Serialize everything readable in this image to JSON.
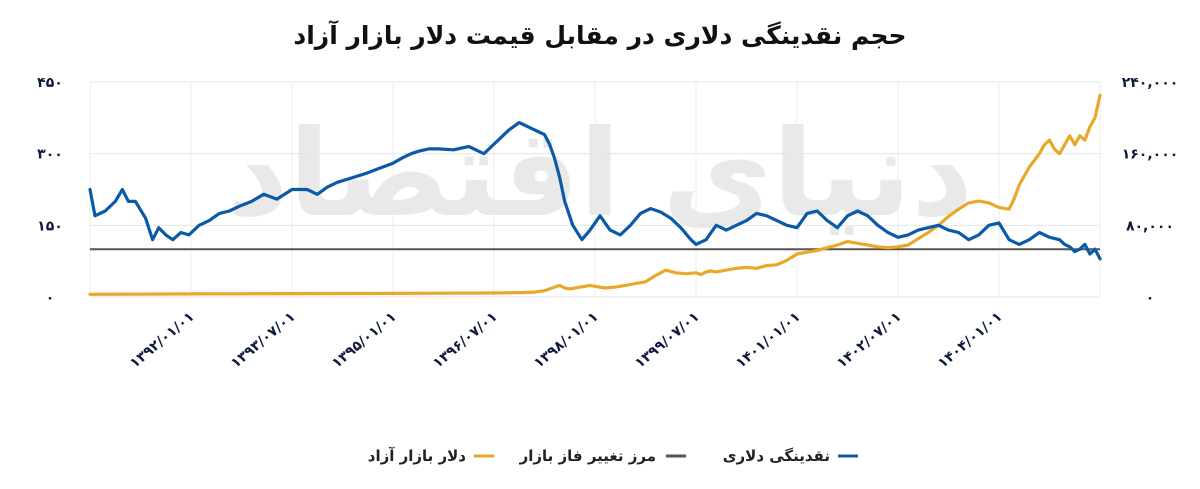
{
  "chart_data": {
    "type": "line",
    "title": "حجم نقدینگی دلاری در مقابل قیمت دلار بازار آزاد",
    "watermark": "دنیای اقتصاد",
    "x_tick_labels": [
      "۱۳۹۲/۰۱/۰۱",
      "۱۳۹۳/۰۷/۰۱",
      "۱۳۹۵/۰۱/۰۱",
      "۱۳۹۶/۰۷/۰۱",
      "۱۳۹۸/۰۱/۰۱",
      "۱۳۹۹/۰۷/۰۱",
      "۱۴۰۱/۰۱/۰۱",
      "۱۴۰۲/۰۷/۰۱",
      "۱۴۰۴/۰۱/۰۱"
    ],
    "x_tick_positions": [
      0.1,
      0.2,
      0.3,
      0.4,
      0.5,
      0.6,
      0.7,
      0.8,
      0.9
    ],
    "y_left": {
      "ylim": [
        0,
        450
      ],
      "ticks": [
        0,
        150,
        300,
        450
      ],
      "tick_labels": [
        "۰",
        "۱۵۰",
        "۳۰۰",
        "۴۵۰"
      ]
    },
    "y_right": {
      "ylim": [
        0,
        240000
      ],
      "ticks": [
        0,
        80000,
        160000,
        240000
      ],
      "tick_labels": [
        "۰",
        "۸۰,۰۰۰",
        "۱۶۰,۰۰۰",
        "۲۴۰,۰۰۰"
      ]
    },
    "x_range": [
      0,
      1
    ],
    "threshold": {
      "name": "مرز تغییر فاز بازار",
      "value": 100,
      "axis": "left",
      "color": "#555555"
    },
    "series": [
      {
        "name": "نقدینگی دلاری",
        "axis": "left",
        "color": "#0a5aa8",
        "x": [
          0.0,
          0.005,
          0.015,
          0.025,
          0.032,
          0.038,
          0.045,
          0.055,
          0.062,
          0.068,
          0.075,
          0.082,
          0.09,
          0.098,
          0.108,
          0.118,
          0.128,
          0.138,
          0.148,
          0.16,
          0.172,
          0.185,
          0.2,
          0.215,
          0.225,
          0.235,
          0.245,
          0.26,
          0.275,
          0.29,
          0.3,
          0.31,
          0.318,
          0.325,
          0.335,
          0.345,
          0.36,
          0.375,
          0.385,
          0.39,
          0.4,
          0.41,
          0.415,
          0.425,
          0.43,
          0.435,
          0.44,
          0.45,
          0.455,
          0.46,
          0.465,
          0.47,
          0.478,
          0.487,
          0.495,
          0.505,
          0.515,
          0.525,
          0.535,
          0.545,
          0.555,
          0.565,
          0.575,
          0.585,
          0.595,
          0.6,
          0.61,
          0.615,
          0.62,
          0.63,
          0.64,
          0.65,
          0.66,
          0.67,
          0.68,
          0.69,
          0.7,
          0.71,
          0.72,
          0.73,
          0.74,
          0.75,
          0.76,
          0.77,
          0.78,
          0.79,
          0.8,
          0.81,
          0.82,
          0.83,
          0.84,
          0.85,
          0.86,
          0.87,
          0.875,
          0.88,
          0.89,
          0.9,
          0.91,
          0.92,
          0.93,
          0.94,
          0.95,
          0.96,
          0.965,
          0.97,
          0.975,
          0.98,
          0.985,
          0.99,
          0.995,
          1.0
        ],
        "values": [
          225,
          170,
          180,
          200,
          225,
          200,
          200,
          165,
          120,
          145,
          130,
          120,
          135,
          130,
          150,
          160,
          175,
          180,
          190,
          200,
          215,
          205,
          225,
          225,
          215,
          230,
          240,
          250,
          260,
          272,
          280,
          292,
          300,
          305,
          310,
          310,
          308,
          315,
          305,
          300,
          320,
          340,
          350,
          365,
          360,
          355,
          350,
          340,
          320,
          290,
          250,
          200,
          150,
          120,
          140,
          170,
          140,
          130,
          150,
          175,
          185,
          178,
          165,
          145,
          120,
          110,
          120,
          135,
          150,
          140,
          150,
          160,
          175,
          170,
          160,
          150,
          145,
          175,
          180,
          160,
          145,
          170,
          180,
          170,
          150,
          135,
          125,
          130,
          140,
          145,
          150,
          140,
          135,
          120,
          125,
          130,
          150,
          155,
          120,
          110,
          120,
          135,
          125,
          120,
          110,
          105,
          95,
          100,
          110,
          90,
          100,
          80
        ]
      },
      {
        "name": "دلار بازار آزاد",
        "axis": "right",
        "color": "#e8a928",
        "x": [
          0.0,
          0.05,
          0.1,
          0.15,
          0.2,
          0.25,
          0.3,
          0.35,
          0.4,
          0.43,
          0.44,
          0.45,
          0.46,
          0.465,
          0.47,
          0.475,
          0.48,
          0.49,
          0.495,
          0.5,
          0.51,
          0.52,
          0.53,
          0.54,
          0.55,
          0.56,
          0.57,
          0.58,
          0.59,
          0.6,
          0.605,
          0.61,
          0.615,
          0.62,
          0.63,
          0.64,
          0.65,
          0.66,
          0.67,
          0.68,
          0.69,
          0.7,
          0.71,
          0.72,
          0.73,
          0.74,
          0.75,
          0.76,
          0.77,
          0.78,
          0.79,
          0.8,
          0.81,
          0.82,
          0.83,
          0.84,
          0.85,
          0.86,
          0.87,
          0.88,
          0.89,
          0.9,
          0.91,
          0.915,
          0.92,
          0.93,
          0.94,
          0.945,
          0.95,
          0.955,
          0.96,
          0.965,
          0.97,
          0.975,
          0.98,
          0.985,
          0.99,
          0.995,
          1.0
        ],
        "values": [
          3000,
          3200,
          3500,
          3600,
          3800,
          3900,
          4000,
          4200,
          4500,
          5000,
          5500,
          7000,
          11000,
          13000,
          10000,
          9000,
          10000,
          12000,
          13000,
          12000,
          10000,
          11000,
          13000,
          15000,
          17000,
          24000,
          30000,
          27000,
          26000,
          27000,
          25000,
          28000,
          29000,
          28000,
          30000,
          32000,
          33000,
          32000,
          35000,
          36000,
          41000,
          48000,
          50000,
          52000,
          55000,
          58000,
          62000,
          60000,
          58000,
          56000,
          55000,
          56000,
          58000,
          65000,
          72000,
          80000,
          90000,
          98000,
          105000,
          107000,
          105000,
          100000,
          98000,
          110000,
          125000,
          145000,
          160000,
          170000,
          175000,
          165000,
          160000,
          170000,
          180000,
          170000,
          180000,
          175000,
          190000,
          200000,
          225000
        ]
      }
    ],
    "legend": [
      {
        "label": "نقدینگی دلاری",
        "color": "#0a5aa8"
      },
      {
        "label": "مرز تغییر فاز بازار",
        "color": "#555555"
      },
      {
        "label": "دلار بازار آزاد",
        "color": "#e8a928"
      }
    ],
    "legend_position": "bottom-center",
    "grid": true
  }
}
